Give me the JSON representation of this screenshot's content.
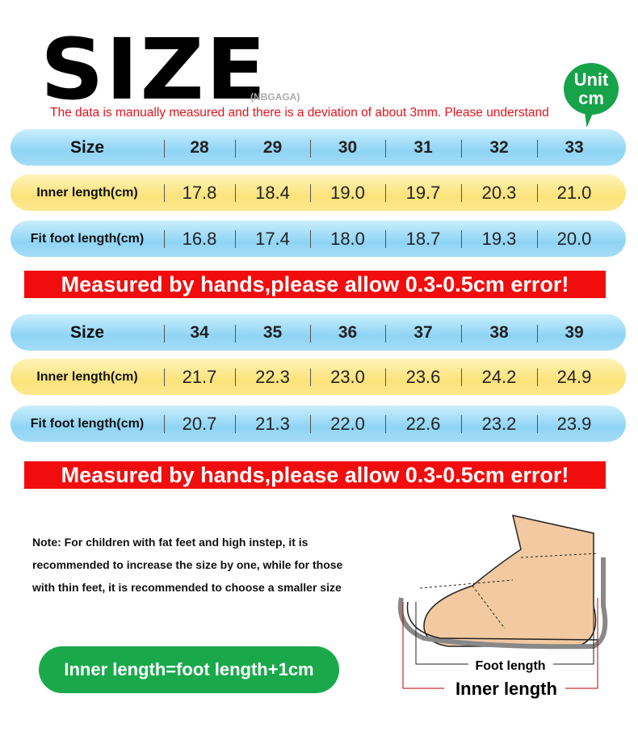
{
  "header": {
    "title": "SIZE",
    "brand": "(NBGAGA)",
    "disclaimer": "The data is manually measured and there is a deviation of about 3mm. Please understand",
    "unit_line1": "Unit",
    "unit_line2": "cm"
  },
  "tables": [
    {
      "size_label": "Size",
      "sizes": [
        "28",
        "29",
        "30",
        "31",
        "32",
        "33"
      ],
      "inner_label": "Inner length(cm)",
      "inner": [
        "17.8",
        "18.4",
        "19.0",
        "19.7",
        "20.3",
        "21.0"
      ],
      "fit_label": "Fit foot length(cm)",
      "fit": [
        "16.8",
        "17.4",
        "18.0",
        "18.7",
        "19.3",
        "20.0"
      ],
      "banner": "Measured by hands,please allow 0.3-0.5cm error!"
    },
    {
      "size_label": "Size",
      "sizes": [
        "34",
        "35",
        "36",
        "37",
        "38",
        "39"
      ],
      "inner_label": "Inner length(cm)",
      "inner": [
        "21.7",
        "22.3",
        "23.0",
        "23.6",
        "24.2",
        "24.9"
      ],
      "fit_label": "Fit foot length(cm)",
      "fit": [
        "20.7",
        "21.3",
        "22.0",
        "22.6",
        "23.2",
        "23.9"
      ],
      "banner": "Measured by hands,please allow 0.3-0.5cm error!"
    }
  ],
  "note": "Note: For children with fat feet and high instep, it is recommended to increase the size by one, while for those with thin feet, it is recommended to choose a smaller size",
  "formula": "Inner length=foot length+1cm",
  "diagram": {
    "foot_length": "Foot length",
    "inner_length": "Inner length"
  },
  "colors": {
    "red": "#f10d0d",
    "green": "#19a94b",
    "blue_row": "#8fd4f5",
    "yellow_row": "#fbe27a"
  }
}
